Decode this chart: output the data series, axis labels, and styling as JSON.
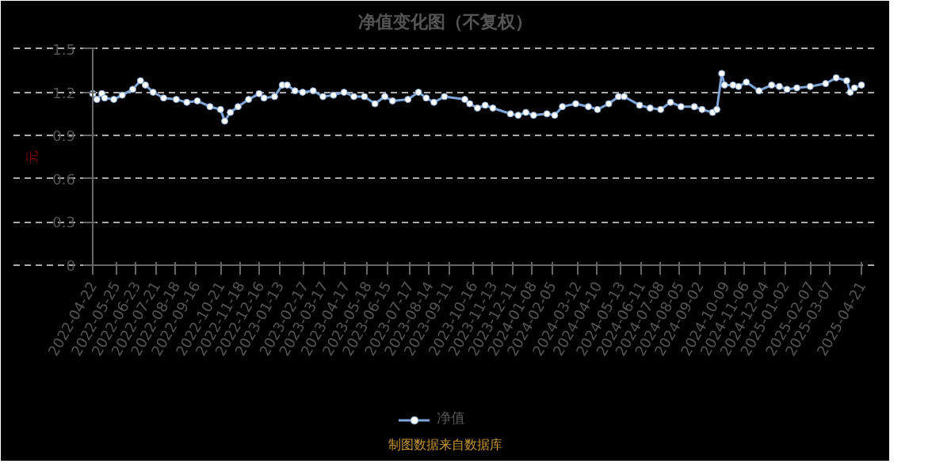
{
  "chart_data": {
    "type": "line",
    "title": "净值变化图（不复权）",
    "ylabel": "元",
    "x": [
      "2022-04-22",
      "2022-04-28",
      "2022-05-05",
      "2022-05-09",
      "2022-05-22",
      "2022-06-03",
      "2022-06-18",
      "2022-06-29",
      "2022-07-06",
      "2022-07-17",
      "2022-08-01",
      "2022-08-19",
      "2022-09-03",
      "2022-09-18",
      "2022-10-06",
      "2022-10-21",
      "2022-10-27",
      "2022-11-04",
      "2022-11-15",
      "2022-11-30",
      "2022-12-15",
      "2022-12-22",
      "2023-01-06",
      "2023-01-17",
      "2023-01-24",
      "2023-02-04",
      "2023-02-15",
      "2023-03-02",
      "2023-03-16",
      "2023-03-31",
      "2023-04-15",
      "2023-04-29",
      "2023-05-14",
      "2023-05-29",
      "2023-06-12",
      "2023-06-23",
      "2023-07-15",
      "2023-07-30",
      "2023-08-10",
      "2023-08-21",
      "2023-09-05",
      "2023-10-04",
      "2023-10-11",
      "2023-10-22",
      "2023-11-02",
      "2023-11-13",
      "2023-12-08",
      "2023-12-19",
      "2023-12-30",
      "2024-01-10",
      "2024-01-29",
      "2024-02-09",
      "2024-02-20",
      "2024-03-10",
      "2024-03-28",
      "2024-04-10",
      "2024-04-26",
      "2024-05-10",
      "2024-05-18",
      "2024-06-09",
      "2024-06-24",
      "2024-07-09",
      "2024-07-23",
      "2024-08-07",
      "2024-08-26",
      "2024-09-06",
      "2024-09-21",
      "2024-09-27",
      "2024-10-04",
      "2024-10-08",
      "2024-10-20",
      "2024-10-28",
      "2024-11-08",
      "2024-11-26",
      "2024-12-14",
      "2024-12-25",
      "2025-01-05",
      "2025-01-19",
      "2025-02-07",
      "2025-03-01",
      "2025-03-16",
      "2025-03-31",
      "2025-04-05",
      "2025-04-11",
      "2025-04-21"
    ],
    "series": [
      {
        "name": "净值",
        "color": "#7fa6d8",
        "values": [
          1.19,
          1.15,
          1.19,
          1.16,
          1.15,
          1.18,
          1.22,
          1.28,
          1.25,
          1.2,
          1.16,
          1.15,
          1.13,
          1.14,
          1.1,
          1.08,
          1.0,
          1.06,
          1.1,
          1.15,
          1.19,
          1.16,
          1.17,
          1.25,
          1.25,
          1.21,
          1.2,
          1.21,
          1.17,
          1.18,
          1.2,
          1.17,
          1.17,
          1.12,
          1.17,
          1.14,
          1.15,
          1.2,
          1.16,
          1.13,
          1.17,
          1.15,
          1.12,
          1.09,
          1.11,
          1.09,
          1.05,
          1.04,
          1.06,
          1.04,
          1.05,
          1.04,
          1.1,
          1.12,
          1.1,
          1.08,
          1.12,
          1.17,
          1.17,
          1.11,
          1.09,
          1.08,
          1.13,
          1.1,
          1.1,
          1.08,
          1.06,
          1.08,
          1.33,
          1.25,
          1.25,
          1.24,
          1.27,
          1.21,
          1.25,
          1.24,
          1.22,
          1.23,
          1.24,
          1.26,
          1.3,
          1.28,
          1.2,
          1.23,
          1.25
        ]
      }
    ],
    "ylim": [
      0,
      1.5
    ],
    "yticks": [
      0,
      0.3,
      0.6,
      0.9,
      1.2,
      1.5
    ],
    "xlim": [
      "2022-04-22",
      "2025-04-21"
    ],
    "xticks": [
      "2022-04-22",
      "2022-05-25",
      "2022-06-23",
      "2022-07-21",
      "2022-08-18",
      "2022-09-16",
      "2022-10-21",
      "2022-11-18",
      "2022-12-16",
      "2023-01-13",
      "2023-02-17",
      "2023-03-17",
      "2023-04-17",
      "2023-05-18",
      "2023-06-15",
      "2023-07-17",
      "2023-08-14",
      "2023-09-11",
      "2023-10-16",
      "2023-11-13",
      "2023-12-11",
      "2024-01-08",
      "2024-02-05",
      "2024-03-12",
      "2024-04-10",
      "2024-05-13",
      "2024-06-11",
      "2024-07-08",
      "2024-08-05",
      "2024-09-02",
      "2024-10-09",
      "2024-11-06",
      "2024-12-04",
      "2025-01-02",
      "2025-02-07",
      "2025-03-07",
      "2025-04-21"
    ],
    "grid": "y",
    "legend": "bottom",
    "marker": "circle",
    "line_style": "solid",
    "annotations": [
      "制图数据来自数据库"
    ]
  }
}
